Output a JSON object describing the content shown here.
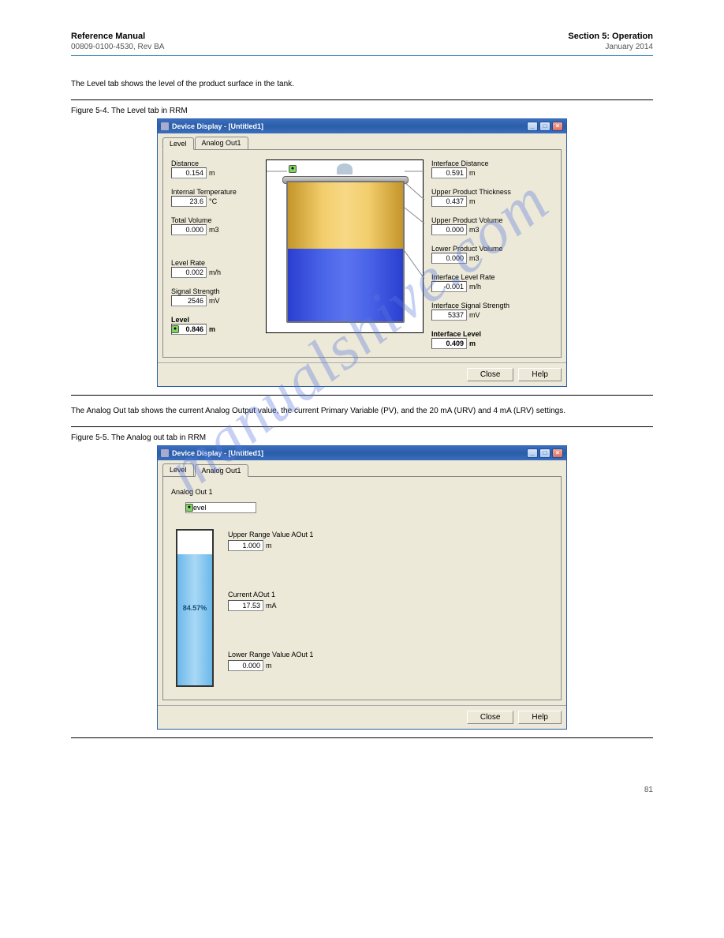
{
  "header": {
    "title": "Reference Manual",
    "doc_id": "00809-0100-4530, Rev BA",
    "section": "Section 5: Operation",
    "date": "January 2014"
  },
  "watermark": "manualshive.com",
  "intro_text": "The Level tab shows the level of the product surface in the tank.",
  "figure1": {
    "label": "Figure 5-4. The Level tab in RRM"
  },
  "window1": {
    "title": "Device Display - [Untitled1]",
    "tabs": {
      "level": "Level",
      "analog": "Analog Out1"
    },
    "left_fields": {
      "distance": {
        "label": "Distance",
        "value": "0.154",
        "unit": "m"
      },
      "temp": {
        "label": "Internal Temperature",
        "value": "23.6",
        "unit": "°C"
      },
      "volume": {
        "label": "Total Volume",
        "value": "0.000",
        "unit": "m3"
      },
      "level_rate": {
        "label": "Level Rate",
        "value": "0.002",
        "unit": "m/h"
      },
      "signal": {
        "label": "Signal Strength",
        "value": "2546",
        "unit": "mV"
      },
      "level": {
        "label": "Level",
        "value": "0.846",
        "unit": "m"
      }
    },
    "right_fields": {
      "if_distance": {
        "label": "Interface Distance",
        "value": "0.591",
        "unit": "m"
      },
      "up_thick": {
        "label": "Upper Product Thickness",
        "value": "0.437",
        "unit": "m"
      },
      "up_vol": {
        "label": "Upper Product Volume",
        "value": "0.000",
        "unit": "m3"
      },
      "lo_vol": {
        "label": "Lower Product Volume",
        "value": "0.000",
        "unit": "m3"
      },
      "if_level_rate": {
        "label": "Interface Level Rate",
        "value": "-0.001",
        "unit": "m/h"
      },
      "if_signal": {
        "label": "Interface Signal Strength",
        "value": "5337",
        "unit": "mV"
      },
      "if_level": {
        "label": "Interface Level",
        "value": "0.409",
        "unit": "m"
      }
    },
    "tank": {
      "upper_fill_pct": 48,
      "lower_fill_pct": 52,
      "upper_color_gradient": [
        "#c4952a",
        "#f2cd6b",
        "#f7d986"
      ],
      "lower_color_gradient": [
        "#2a3fd0",
        "#4a64e8",
        "#5a74f0"
      ]
    },
    "buttons": {
      "close": "Close",
      "help": "Help"
    }
  },
  "figure2": {
    "text_above": "The Analog Out tab shows the current Analog Output value, the current Primary Variable (PV), and the 20 mA (URV) and 4 mA (LRV) settings.",
    "label": "Figure 5-5. The Analog out tab in RRM"
  },
  "window2": {
    "title": "Device Display - [Untitled1]",
    "tabs": {
      "level": "Level",
      "analog": "Analog Out1"
    },
    "group_label": "Analog Out 1",
    "dropdown": {
      "value": "Level"
    },
    "fields": {
      "upper": {
        "label": "Upper Range Value AOut 1",
        "value": "1.000",
        "unit": "m"
      },
      "current": {
        "label": "Current AOut 1",
        "value": "17.53",
        "unit": "mA"
      },
      "lower": {
        "label": "Lower Range Value AOut 1",
        "value": "0.000",
        "unit": "m"
      }
    },
    "gauge": {
      "pct_text": "84.57%",
      "fill_pct": 84.57,
      "fill_color": "#7fc8f0"
    },
    "buttons": {
      "close": "Close",
      "help": "Help"
    }
  },
  "footer": {
    "page": "81"
  }
}
